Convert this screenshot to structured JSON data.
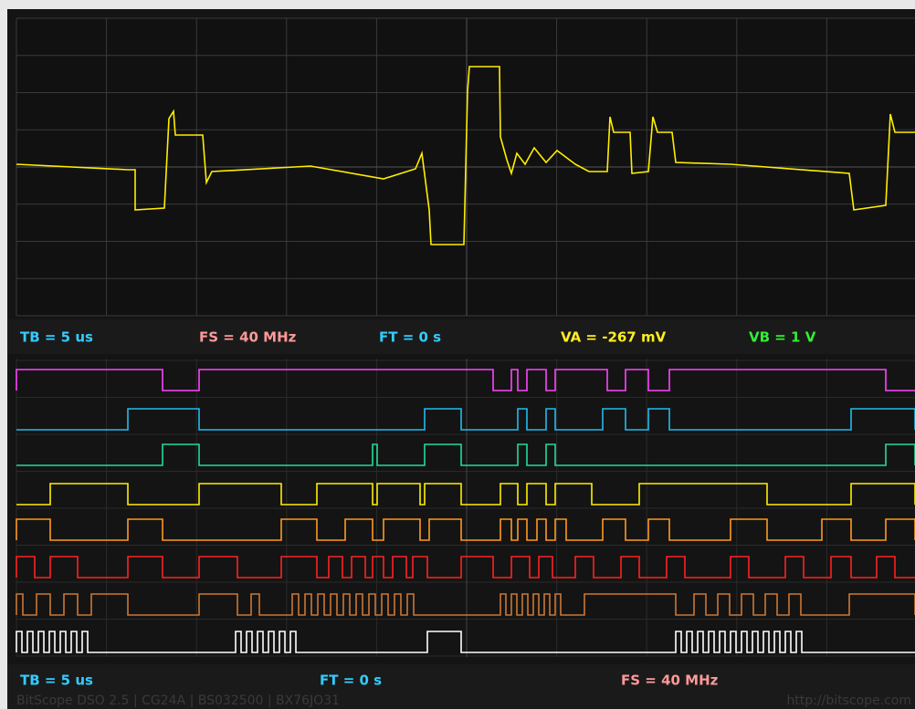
{
  "status_top": {
    "tb": "TB = 5 us",
    "fs": "FS = 40 MHz",
    "ft": "FT = 0 s",
    "va": "VA = -267 mV",
    "vb": "VB = 1 V"
  },
  "status_bottom": {
    "tb": "TB = 5 us",
    "ft": "FT = 0 s",
    "fs": "FS = 40 MHz"
  },
  "footer": {
    "product": "BitScope DSO 2.5 | CG24A | BS032500 | BX76JO31",
    "url": "http://bitscope.com"
  }
}
